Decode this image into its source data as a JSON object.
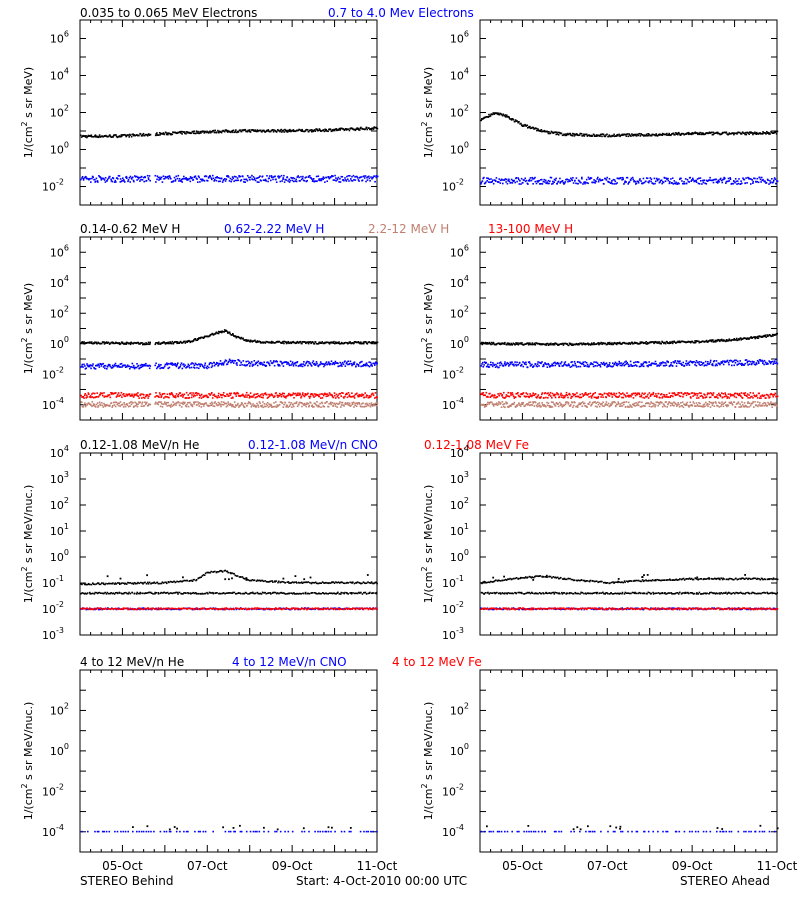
{
  "footer": {
    "left": "STEREO Behind",
    "center": "Start:  4-Oct-2010 00:00 UTC",
    "right": "STEREO Ahead"
  },
  "rows": [
    {
      "titles": [
        {
          "text": "0.035 to 0.065 MeV Electrons",
          "color": "#000000"
        },
        {
          "text": "0.7 to 4.0 Mev Electrons",
          "color": "#0000ff"
        }
      ]
    },
    {
      "titles": [
        {
          "text": "0.14-0.62 MeV H",
          "color": "#000000"
        },
        {
          "text": "0.62-2.22 MeV H",
          "color": "#0000ff"
        },
        {
          "text": "2.2-12 MeV H",
          "color": "#c08070"
        },
        {
          "text": "13-100 MeV H",
          "color": "#ff0000"
        }
      ]
    },
    {
      "titles": [
        {
          "text": "0.12-1.08 MeV/n He",
          "color": "#000000"
        },
        {
          "text": "0.12-1.08 MeV/n CNO",
          "color": "#0000ff"
        },
        {
          "text": "0.12-1.08 MeV Fe",
          "color": "#ff0000"
        }
      ]
    },
    {
      "titles": [
        {
          "text": "4 to 12 MeV/n He",
          "color": "#000000"
        },
        {
          "text": "4 to 12 MeV/n CNO",
          "color": "#0000ff"
        },
        {
          "text": "4 to 12 MeV Fe",
          "color": "#ff0000"
        }
      ]
    }
  ],
  "chart_data": [
    {
      "type": "scatter",
      "panel": "behind-electrons",
      "ylabel_base": "1/(cm",
      "ylabel_sup": "2",
      "ylabel_rest": " s sr MeV)",
      "yscale": "log",
      "ylim": [
        -3,
        7
      ],
      "yticks": [
        {
          "b": "10",
          "e": "6",
          "v": 6
        },
        {
          "b": "10",
          "e": "4",
          "v": 4
        },
        {
          "b": "10",
          "e": "2",
          "v": 2
        },
        {
          "b": "10",
          "e": "0",
          "v": 0
        },
        {
          "b": "10",
          "e": "-2",
          "v": -2
        }
      ],
      "x_days": [
        0,
        7
      ],
      "xticks": [
        "05-Oct",
        "07-Oct",
        "09-Oct",
        "11-Oct"
      ],
      "gap": [
        1.65,
        1.75
      ],
      "series": [
        {
          "color": "#000000",
          "x": [
            0,
            1,
            2,
            3,
            4,
            5,
            6,
            7
          ],
          "y": [
            0.7,
            0.72,
            0.85,
            0.95,
            1.0,
            1.0,
            1.05,
            1.15
          ]
        },
        {
          "color": "#0000ff",
          "x": [
            0,
            7
          ],
          "y": [
            -1.6,
            -1.6
          ]
        }
      ]
    },
    {
      "type": "scatter",
      "panel": "ahead-electrons",
      "ylabel_base": "1/(cm",
      "ylabel_sup": "2",
      "ylabel_rest": " s sr MeV)",
      "yscale": "log",
      "ylim": [
        -3,
        7
      ],
      "yticks": [
        {
          "b": "10",
          "e": "6",
          "v": 6
        },
        {
          "b": "10",
          "e": "4",
          "v": 4
        },
        {
          "b": "10",
          "e": "2",
          "v": 2
        },
        {
          "b": "10",
          "e": "0",
          "v": 0
        },
        {
          "b": "10",
          "e": "-2",
          "v": -2
        }
      ],
      "x_days": [
        0,
        7
      ],
      "xticks": [
        "05-Oct",
        "07-Oct",
        "09-Oct",
        "11-Oct"
      ],
      "gap": [],
      "series": [
        {
          "color": "#000000",
          "x": [
            0,
            0.3,
            0.6,
            1.0,
            1.5,
            2.0,
            3.0,
            4.0,
            5.0,
            6.0,
            7.0
          ],
          "y": [
            1.6,
            1.95,
            1.8,
            1.3,
            0.95,
            0.8,
            0.75,
            0.78,
            0.85,
            0.85,
            0.9
          ]
        },
        {
          "color": "#0000ff",
          "x": [
            0,
            7
          ],
          "y": [
            -1.7,
            -1.7
          ]
        }
      ]
    },
    {
      "type": "scatter",
      "panel": "behind-protons",
      "ylabel_base": "1/(cm",
      "ylabel_sup": "2",
      "ylabel_rest": " s sr MeV)",
      "yscale": "log",
      "ylim": [
        -5,
        7
      ],
      "yticks": [
        {
          "b": "10",
          "e": "6",
          "v": 6
        },
        {
          "b": "10",
          "e": "4",
          "v": 4
        },
        {
          "b": "10",
          "e": "2",
          "v": 2
        },
        {
          "b": "10",
          "e": "0",
          "v": 0
        },
        {
          "b": "10",
          "e": "-2",
          "v": -2
        },
        {
          "b": "10",
          "e": "-4",
          "v": -4
        }
      ],
      "x_days": [
        0,
        7
      ],
      "xticks": [
        "05-Oct",
        "07-Oct",
        "09-Oct",
        "11-Oct"
      ],
      "gap": [
        1.65,
        1.75
      ],
      "series": [
        {
          "color": "#000000",
          "x": [
            0,
            1.5,
            2.5,
            3.0,
            3.4,
            3.7,
            4.0,
            4.5,
            5.0,
            6.0,
            7.0
          ],
          "y": [
            0.05,
            0.0,
            0.08,
            0.5,
            0.85,
            0.4,
            0.15,
            0.08,
            0.05,
            0.05,
            0.05
          ]
        },
        {
          "color": "#0000ff",
          "x": [
            0,
            3,
            3.5,
            4,
            7
          ],
          "y": [
            -1.5,
            -1.45,
            -1.2,
            -1.3,
            -1.35
          ]
        },
        {
          "color": "#c08070",
          "x": [
            0,
            7
          ],
          "y": [
            -4.0,
            -4.0
          ]
        },
        {
          "color": "#ff0000",
          "x": [
            0,
            7
          ],
          "y": [
            -3.4,
            -3.4
          ]
        }
      ]
    },
    {
      "type": "scatter",
      "panel": "ahead-protons",
      "ylabel_base": "1/(cm",
      "ylabel_sup": "2",
      "ylabel_rest": " s sr MeV)",
      "yscale": "log",
      "ylim": [
        -5,
        7
      ],
      "yticks": [
        {
          "b": "10",
          "e": "6",
          "v": 6
        },
        {
          "b": "10",
          "e": "4",
          "v": 4
        },
        {
          "b": "10",
          "e": "2",
          "v": 2
        },
        {
          "b": "10",
          "e": "0",
          "v": 0
        },
        {
          "b": "10",
          "e": "-2",
          "v": -2
        },
        {
          "b": "10",
          "e": "-4",
          "v": -4
        }
      ],
      "x_days": [
        0,
        7
      ],
      "xticks": [
        "05-Oct",
        "07-Oct",
        "09-Oct",
        "11-Oct"
      ],
      "gap": [],
      "series": [
        {
          "color": "#000000",
          "x": [
            0,
            2,
            3,
            4,
            5,
            6,
            6.5,
            7
          ],
          "y": [
            0.0,
            -0.05,
            0.0,
            0.05,
            0.1,
            0.25,
            0.4,
            0.6
          ]
        },
        {
          "color": "#0000ff",
          "x": [
            0,
            3,
            5,
            7
          ],
          "y": [
            -1.4,
            -1.35,
            -1.3,
            -1.2
          ]
        },
        {
          "color": "#c08070",
          "x": [
            0,
            7
          ],
          "y": [
            -4.0,
            -4.0
          ]
        },
        {
          "color": "#ff0000",
          "x": [
            0,
            7
          ],
          "y": [
            -3.4,
            -3.4
          ]
        }
      ]
    },
    {
      "type": "scatter",
      "panel": "behind-heavy-low",
      "ylabel_base": "1/(cm",
      "ylabel_sup": "2",
      "ylabel_rest": " s sr MeV/nuc.)",
      "yscale": "log",
      "ylim": [
        -3,
        4
      ],
      "yticks": [
        {
          "b": "10",
          "e": "4",
          "v": 4
        },
        {
          "b": "10",
          "e": "3",
          "v": 3
        },
        {
          "b": "10",
          "e": "2",
          "v": 2
        },
        {
          "b": "10",
          "e": "1",
          "v": 1
        },
        {
          "b": "10",
          "e": "0",
          "v": 0
        },
        {
          "b": "10",
          "e": "-1",
          "v": -1
        },
        {
          "b": "10",
          "e": "-2",
          "v": -2
        },
        {
          "b": "10",
          "e": "-3",
          "v": -3
        }
      ],
      "x_days": [
        0,
        7
      ],
      "xticks": [
        "05-Oct",
        "07-Oct",
        "09-Oct",
        "11-Oct"
      ],
      "gap": [],
      "series": [
        {
          "color": "#000000",
          "x": [
            0,
            2,
            2.7,
            3.0,
            3.4,
            4.0,
            5.0,
            6.0,
            7.0
          ],
          "y": [
            -1.05,
            -1.0,
            -0.9,
            -0.6,
            -0.55,
            -0.9,
            -1.0,
            -1.0,
            -1.0
          ]
        },
        {
          "color": "#000000",
          "x": [
            0,
            7
          ],
          "y": [
            -1.4,
            -1.4
          ]
        },
        {
          "color": "#0000ff",
          "x": [
            0,
            7
          ],
          "y": [
            -2.0,
            -2.0
          ]
        },
        {
          "color": "#ff0000",
          "x": [
            0,
            7
          ],
          "y": [
            -2.0,
            -2.0
          ]
        }
      ]
    },
    {
      "type": "scatter",
      "panel": "ahead-heavy-low",
      "ylabel_base": "1/(cm",
      "ylabel_sup": "2",
      "ylabel_rest": " s sr MeV/nuc.)",
      "yscale": "log",
      "ylim": [
        -3,
        4
      ],
      "yticks": [
        {
          "b": "10",
          "e": "4",
          "v": 4
        },
        {
          "b": "10",
          "e": "3",
          "v": 3
        },
        {
          "b": "10",
          "e": "2",
          "v": 2
        },
        {
          "b": "10",
          "e": "1",
          "v": 1
        },
        {
          "b": "10",
          "e": "0",
          "v": 0
        },
        {
          "b": "10",
          "e": "-1",
          "v": -1
        },
        {
          "b": "10",
          "e": "-2",
          "v": -2
        },
        {
          "b": "10",
          "e": "-3",
          "v": -3
        }
      ],
      "x_days": [
        0,
        7
      ],
      "xticks": [
        "05-Oct",
        "07-Oct",
        "09-Oct",
        "11-Oct"
      ],
      "gap": [],
      "series": [
        {
          "color": "#000000",
          "x": [
            0,
            1,
            1.5,
            2,
            3,
            4,
            5,
            6,
            7
          ],
          "y": [
            -1.0,
            -0.8,
            -0.75,
            -0.85,
            -1.0,
            -0.9,
            -0.85,
            -0.85,
            -0.85
          ]
        },
        {
          "color": "#000000",
          "x": [
            0,
            7
          ],
          "y": [
            -1.4,
            -1.4
          ]
        },
        {
          "color": "#0000ff",
          "x": [
            0,
            7
          ],
          "y": [
            -2.0,
            -2.0
          ]
        },
        {
          "color": "#ff0000",
          "x": [
            0,
            7
          ],
          "y": [
            -2.0,
            -2.0
          ]
        }
      ]
    },
    {
      "type": "scatter",
      "panel": "behind-heavy-high",
      "ylabel_base": "1/(cm",
      "ylabel_sup": "2",
      "ylabel_rest": " s sr MeV/nuc.)",
      "yscale": "log",
      "ylim": [
        -5,
        4
      ],
      "yticks": [
        {
          "b": "10",
          "e": "2",
          "v": 2
        },
        {
          "b": "10",
          "e": "0",
          "v": 0
        },
        {
          "b": "10",
          "e": "-2",
          "v": -2
        },
        {
          "b": "10",
          "e": "-4",
          "v": -4
        }
      ],
      "x_days": [
        0,
        7
      ],
      "xticks": [
        "05-Oct",
        "07-Oct",
        "09-Oct",
        "11-Oct"
      ],
      "gap": [],
      "series": [
        {
          "color": "#0000ff",
          "x": [
            0,
            7
          ],
          "y": [
            -4.0,
            -4.0
          ]
        }
      ]
    },
    {
      "type": "scatter",
      "panel": "ahead-heavy-high",
      "ylabel_base": "1/(cm",
      "ylabel_sup": "2",
      "ylabel_rest": " s sr MeV/nuc.)",
      "yscale": "log",
      "ylim": [
        -5,
        4
      ],
      "yticks": [
        {
          "b": "10",
          "e": "2",
          "v": 2
        },
        {
          "b": "10",
          "e": "0",
          "v": 0
        },
        {
          "b": "10",
          "e": "-2",
          "v": -2
        },
        {
          "b": "10",
          "e": "-4",
          "v": -4
        }
      ],
      "x_days": [
        0,
        7
      ],
      "xticks": [
        "05-Oct",
        "07-Oct",
        "09-Oct",
        "11-Oct"
      ],
      "gap": [],
      "series": [
        {
          "color": "#0000ff",
          "x": [
            0,
            7
          ],
          "y": [
            -4.0,
            -4.0
          ]
        }
      ]
    }
  ]
}
